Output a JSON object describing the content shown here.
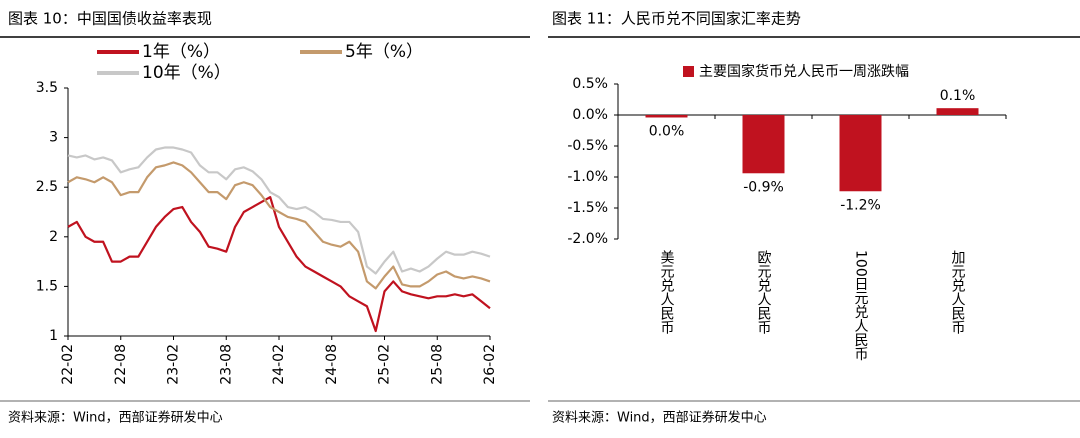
{
  "chart_data": [
    {
      "type": "line",
      "title": "图表 10：中国国债收益率表现",
      "source": "资料来源：Wind，西部证券研发中心",
      "categories": [
        "22-02",
        null,
        null,
        null,
        null,
        null,
        "22-08",
        null,
        null,
        null,
        null,
        null,
        "23-02",
        null,
        null,
        null,
        null,
        null,
        "23-08",
        null,
        null,
        null,
        null,
        null,
        "24-02",
        null,
        null,
        null,
        null,
        null,
        "24-08",
        null,
        null,
        null,
        null,
        null,
        "25-02",
        null,
        null,
        null,
        null,
        null,
        "25-08",
        null,
        null,
        null,
        null,
        null,
        "26-02"
      ],
      "ylim": [
        1,
        3.5
      ],
      "yticks": [
        1,
        1.5,
        2,
        2.5,
        3,
        3.5
      ],
      "grid": false,
      "series": [
        {
          "name": "1年（%）",
          "color": "#c0121f",
          "values": [
            2.1,
            2.15,
            2.0,
            1.95,
            1.95,
            1.75,
            1.75,
            1.8,
            1.8,
            1.95,
            2.1,
            2.2,
            2.28,
            2.3,
            2.15,
            2.05,
            1.9,
            1.88,
            1.85,
            2.1,
            2.25,
            2.3,
            2.35,
            2.4,
            2.1,
            1.95,
            1.8,
            1.7,
            1.65,
            1.6,
            1.55,
            1.5,
            1.4,
            1.35,
            1.3,
            1.05,
            1.45,
            1.55,
            1.45,
            1.42,
            1.4,
            1.38,
            1.4,
            1.4,
            1.42,
            1.4,
            1.42,
            1.35,
            1.28
          ]
        },
        {
          "name": "5年（%）",
          "color": "#c49a6c",
          "values": [
            2.55,
            2.6,
            2.58,
            2.55,
            2.6,
            2.55,
            2.42,
            2.45,
            2.45,
            2.6,
            2.7,
            2.72,
            2.75,
            2.72,
            2.65,
            2.55,
            2.45,
            2.45,
            2.38,
            2.52,
            2.55,
            2.52,
            2.42,
            2.3,
            2.25,
            2.2,
            2.18,
            2.15,
            2.05,
            1.95,
            1.92,
            1.9,
            1.95,
            1.85,
            1.55,
            1.48,
            1.6,
            1.7,
            1.52,
            1.5,
            1.5,
            1.55,
            1.62,
            1.65,
            1.6,
            1.58,
            1.6,
            1.58,
            1.55
          ]
        },
        {
          "name": "10年（%）",
          "color": "#c8c8c8",
          "values": [
            2.82,
            2.8,
            2.82,
            2.78,
            2.8,
            2.77,
            2.65,
            2.68,
            2.7,
            2.8,
            2.88,
            2.9,
            2.9,
            2.88,
            2.85,
            2.72,
            2.65,
            2.65,
            2.58,
            2.68,
            2.7,
            2.66,
            2.58,
            2.45,
            2.4,
            2.3,
            2.28,
            2.3,
            2.25,
            2.18,
            2.17,
            2.15,
            2.15,
            2.05,
            1.7,
            1.63,
            1.75,
            1.85,
            1.65,
            1.68,
            1.65,
            1.7,
            1.78,
            1.85,
            1.82,
            1.82,
            1.85,
            1.83,
            1.8
          ]
        }
      ]
    },
    {
      "type": "bar",
      "title": "图表 11：人民币兑不同国家汇率走势",
      "source": "资料来源：Wind，西部证券研发中心",
      "categories": [
        "美元兑人民币",
        "欧元兑人民币",
        "100日元兑人民币",
        "加元兑人民币"
      ],
      "ylim": [
        -2,
        0.5
      ],
      "yticks": [
        {
          "value": -2,
          "label": "-2.0%"
        },
        {
          "value": -1.5,
          "label": "-1.5%"
        },
        {
          "value": -1,
          "label": "-1.0%"
        },
        {
          "value": -0.5,
          "label": "-0.5%"
        },
        {
          "value": 0,
          "label": "0.0%"
        },
        {
          "value": 0.5,
          "label": "0.5%"
        }
      ],
      "grid": false,
      "series": [
        {
          "name": "主要国家货币兑人民币一周涨跌幅",
          "color": "#c0121f",
          "values": [
            -0.04,
            -0.94,
            -1.23,
            0.11
          ],
          "value_labels": [
            "0.0%",
            "-0.9%",
            "-1.2%",
            "0.1%"
          ]
        }
      ]
    }
  ]
}
